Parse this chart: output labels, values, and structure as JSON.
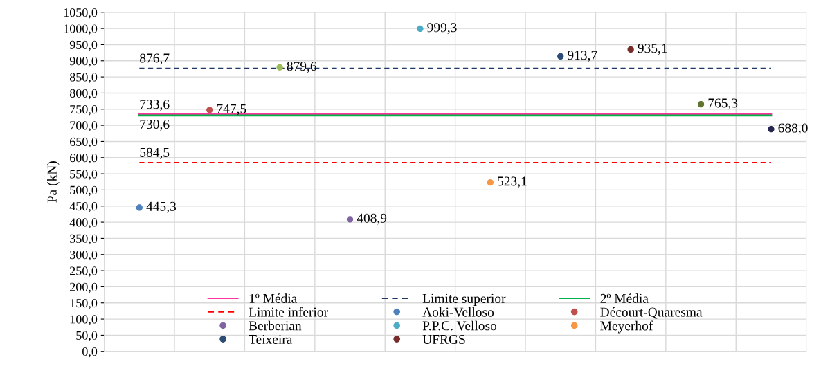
{
  "chart_data": {
    "type": "scatter",
    "ylabel": "Pa (kN)",
    "categories": [
      null,
      null,
      null,
      null,
      null,
      null,
      null,
      null,
      null,
      null
    ],
    "ylim": [
      0,
      1050
    ],
    "yticks": [
      {
        "value": 0,
        "label": "0,0"
      },
      {
        "value": 50,
        "label": "50,0"
      },
      {
        "value": 100,
        "label": "100,0"
      },
      {
        "value": 150,
        "label": "150,0"
      },
      {
        "value": 200,
        "label": "200,0"
      },
      {
        "value": 250,
        "label": "250,0"
      },
      {
        "value": 300,
        "label": "300,0"
      },
      {
        "value": 350,
        "label": "350,0"
      },
      {
        "value": 400,
        "label": "400,0"
      },
      {
        "value": 450,
        "label": "450,0"
      },
      {
        "value": 500,
        "label": "500,0"
      },
      {
        "value": 550,
        "label": "550,0"
      },
      {
        "value": 600,
        "label": "600,0"
      },
      {
        "value": 650,
        "label": "650,0"
      },
      {
        "value": 700,
        "label": "700,0"
      },
      {
        "value": 750,
        "label": "750,0"
      },
      {
        "value": 800,
        "label": "800,0"
      },
      {
        "value": 850,
        "label": "850,0"
      },
      {
        "value": 900,
        "label": "900,0"
      },
      {
        "value": 950,
        "label": "950,0"
      },
      {
        "value": 1000,
        "label": "1000,0"
      },
      {
        "value": 1050,
        "label": "1050,0"
      }
    ],
    "grid": true,
    "legend": "bottom",
    "marker": "circle",
    "series": [
      {
        "name": "1º Média",
        "type": "line",
        "marker": "none",
        "line_style": "solid",
        "color": "#ff3399",
        "values": [
          733.6,
          733.6,
          733.6,
          733.6,
          733.6,
          733.6,
          733.6,
          733.6,
          733.6,
          733.6
        ],
        "value_labels": [
          "733,6",
          null,
          null,
          null,
          null,
          null,
          null,
          null,
          null,
          null
        ]
      },
      {
        "name": "Limite superior",
        "type": "line",
        "marker": "none",
        "line_style": "dashed",
        "color": "#1f3864",
        "values": [
          876.7,
          876.7,
          876.7,
          876.7,
          876.7,
          876.7,
          876.7,
          876.7,
          876.7,
          876.7
        ],
        "value_labels": [
          "876,7",
          null,
          null,
          null,
          null,
          null,
          null,
          null,
          null,
          null
        ]
      },
      {
        "name": "2º Média",
        "type": "line",
        "marker": "none",
        "line_style": "solid",
        "color": "#00b050",
        "values": [
          730.6,
          730.6,
          730.6,
          730.6,
          730.6,
          730.6,
          730.6,
          730.6,
          730.6,
          730.6
        ],
        "value_labels": [
          "730,6",
          null,
          null,
          null,
          null,
          null,
          null,
          null,
          null,
          null
        ]
      },
      {
        "name": "Limite inferior",
        "type": "line",
        "marker": "none",
        "line_style": "dashed",
        "color": "#ff0000",
        "values": [
          584.5,
          584.5,
          584.5,
          584.5,
          584.5,
          584.5,
          584.5,
          584.5,
          584.5,
          584.5
        ],
        "value_labels": [
          "584,5",
          null,
          null,
          null,
          null,
          null,
          null,
          null,
          null,
          null
        ]
      },
      {
        "name": "Aoki-Velloso",
        "color": "#4f81bd",
        "values": [
          445.3,
          null,
          null,
          null,
          null,
          null,
          null,
          null,
          null,
          null
        ],
        "value_labels": [
          "445,3",
          null,
          null,
          null,
          null,
          null,
          null,
          null,
          null,
          null
        ]
      },
      {
        "name": "Décourt-Quaresma",
        "color": "#c0504d",
        "values": [
          null,
          747.5,
          null,
          null,
          null,
          null,
          null,
          null,
          null,
          null
        ],
        "value_labels": [
          null,
          "747,5",
          null,
          null,
          null,
          null,
          null,
          null,
          null,
          null
        ]
      },
      {
        "color": "#9bbb59",
        "values": [
          null,
          null,
          879.6,
          null,
          null,
          null,
          null,
          null,
          null,
          null
        ],
        "value_labels": [
          null,
          null,
          "879,6",
          null,
          null,
          null,
          null,
          null,
          null,
          null
        ]
      },
      {
        "name": "Berberian",
        "color": "#8064a2",
        "values": [
          null,
          null,
          null,
          408.9,
          null,
          null,
          null,
          null,
          null,
          null
        ],
        "value_labels": [
          null,
          null,
          null,
          "408,9",
          null,
          null,
          null,
          null,
          null,
          null
        ]
      },
      {
        "name": "P.P.C. Velloso",
        "color": "#4bacc6",
        "values": [
          null,
          null,
          null,
          null,
          999.3,
          null,
          null,
          null,
          null,
          null
        ],
        "value_labels": [
          null,
          null,
          null,
          null,
          "999,3",
          null,
          null,
          null,
          null,
          null
        ]
      },
      {
        "name": "Meyerhof",
        "color": "#f79646",
        "values": [
          null,
          null,
          null,
          null,
          null,
          523.1,
          null,
          null,
          null,
          null
        ],
        "value_labels": [
          null,
          null,
          null,
          null,
          null,
          "523,1",
          null,
          null,
          null,
          null
        ]
      },
      {
        "name": "Teixeira",
        "color": "#2c4d75",
        "values": [
          null,
          null,
          null,
          null,
          null,
          null,
          913.7,
          null,
          null,
          null
        ],
        "value_labels": [
          null,
          null,
          null,
          null,
          null,
          null,
          "913,7",
          null,
          null,
          null
        ]
      },
      {
        "name": "UFRGS",
        "color": "#772c2a",
        "values": [
          null,
          null,
          null,
          null,
          null,
          null,
          null,
          935.1,
          null,
          null
        ],
        "value_labels": [
          null,
          null,
          null,
          null,
          null,
          null,
          null,
          "935,1",
          null,
          null
        ]
      },
      {
        "color": "#5f7530",
        "values": [
          null,
          null,
          null,
          null,
          null,
          null,
          null,
          null,
          765.3,
          null
        ],
        "value_labels": [
          null,
          null,
          null,
          null,
          null,
          null,
          null,
          null,
          "765,3",
          null
        ]
      },
      {
        "color": "#262650",
        "values": [
          null,
          null,
          null,
          null,
          null,
          null,
          null,
          null,
          null,
          688.0
        ],
        "value_labels": [
          null,
          null,
          null,
          null,
          null,
          null,
          null,
          null,
          null,
          "688,0"
        ]
      }
    ]
  }
}
